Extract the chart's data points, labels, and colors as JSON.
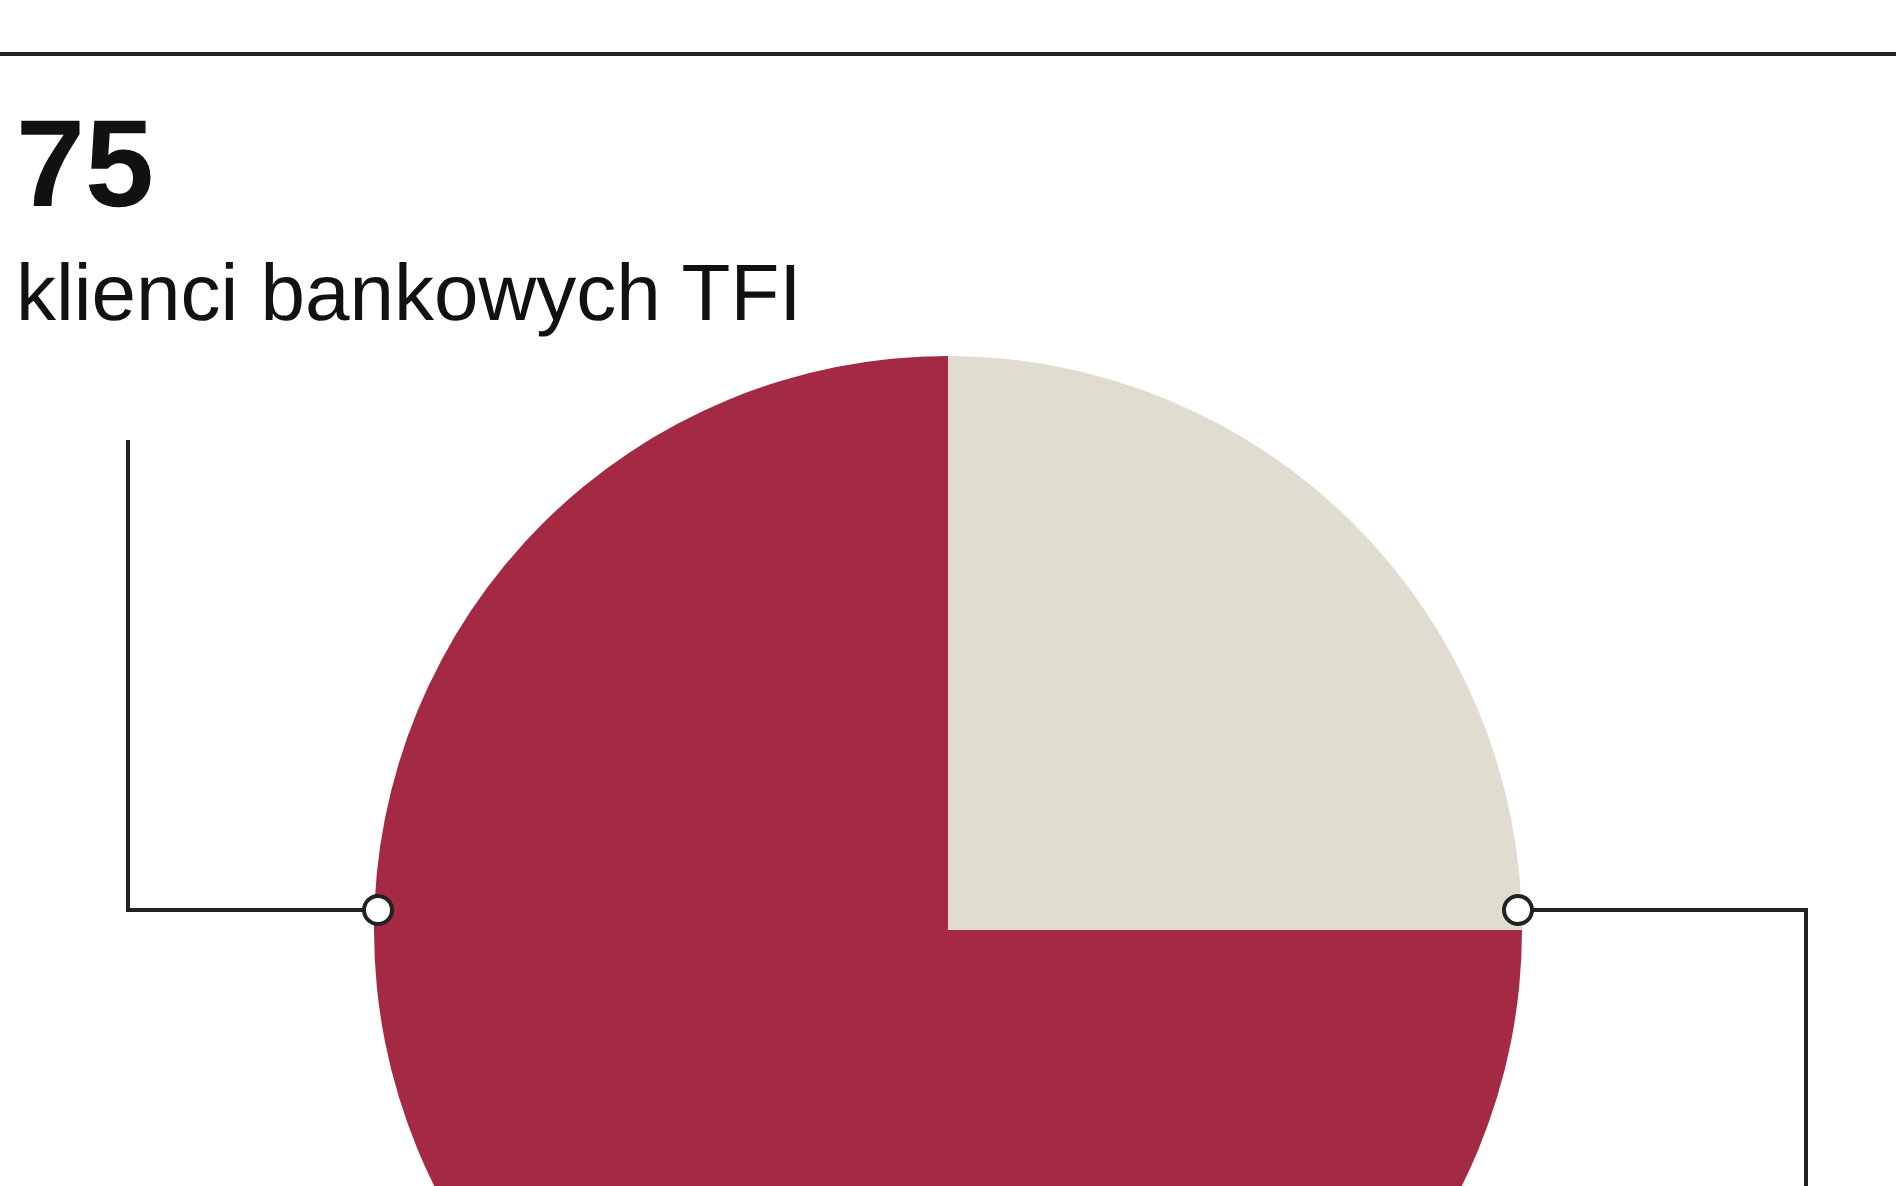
{
  "chart_data": {
    "type": "pie",
    "categories": [
      "klienci bankowych TFI",
      null
    ],
    "values": [
      75,
      25
    ],
    "colors": [
      "#a32a42",
      "#e0ddd0"
    ],
    "value_labels": [
      "75",
      null
    ]
  }
}
